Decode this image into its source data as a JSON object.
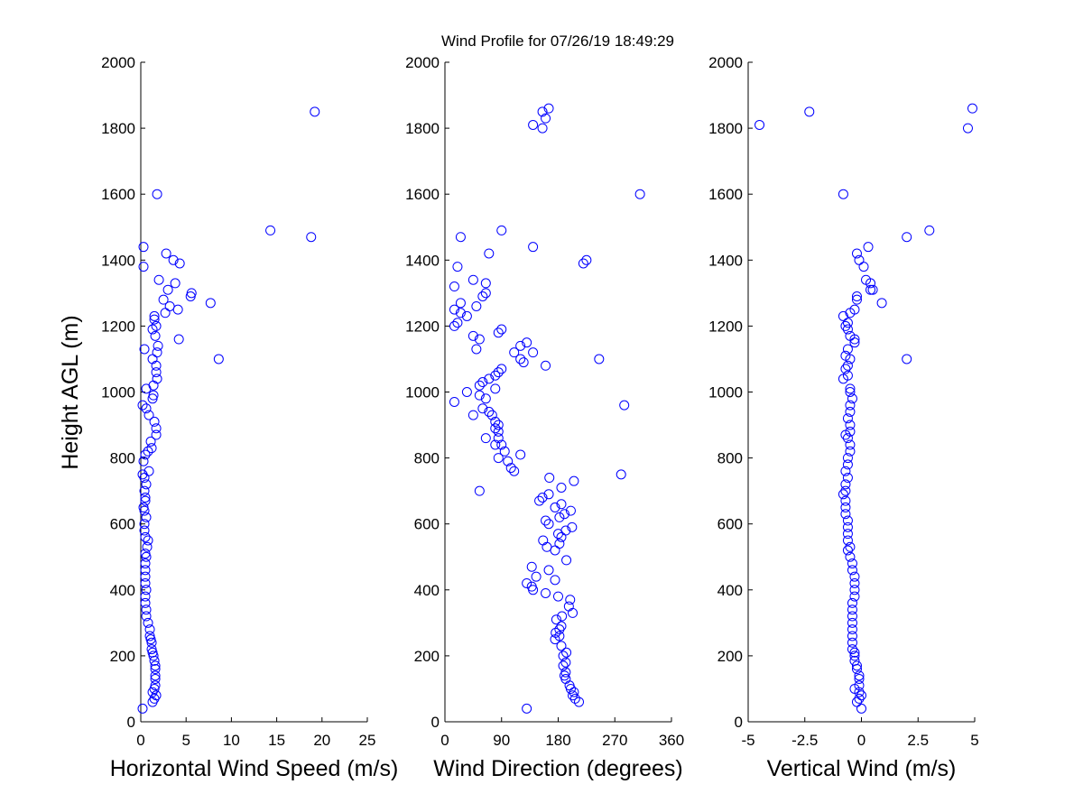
{
  "figure": {
    "title": "Wind Profile for  07/26/19 18:49:29",
    "ylabel": "Height AGL (m)"
  },
  "chart_data": [
    {
      "type": "scatter",
      "name": "speed",
      "xlabel": "Horizontal Wind Speed (m/s)",
      "xlim": [
        0,
        25
      ],
      "ylim": [
        0,
        2000
      ],
      "xticks": [
        "0",
        "5",
        "10",
        "15",
        "20",
        "25"
      ],
      "yticks": [
        "0",
        "200",
        "400",
        "600",
        "800",
        "1000",
        "1200",
        "1400",
        "1600",
        "1800",
        "2000"
      ],
      "marker_color": "#0000ff",
      "points": [
        [
          0.2,
          40
        ],
        [
          1.3,
          60
        ],
        [
          1.5,
          70
        ],
        [
          1.7,
          80
        ],
        [
          1.3,
          90
        ],
        [
          1.5,
          100
        ],
        [
          1.6,
          110
        ],
        [
          1.6,
          130
        ],
        [
          1.6,
          140
        ],
        [
          1.6,
          160
        ],
        [
          1.6,
          170
        ],
        [
          1.5,
          185
        ],
        [
          1.4,
          200
        ],
        [
          1.3,
          210
        ],
        [
          1.2,
          220
        ],
        [
          1.2,
          240
        ],
        [
          1.1,
          250
        ],
        [
          1.0,
          260
        ],
        [
          1.0,
          280
        ],
        [
          0.8,
          300
        ],
        [
          0.6,
          320
        ],
        [
          0.6,
          340
        ],
        [
          0.5,
          360
        ],
        [
          0.5,
          380
        ],
        [
          0.6,
          400
        ],
        [
          0.5,
          420
        ],
        [
          0.5,
          440
        ],
        [
          0.5,
          460
        ],
        [
          0.5,
          480
        ],
        [
          0.6,
          500
        ],
        [
          0.5,
          510
        ],
        [
          0.7,
          530
        ],
        [
          0.8,
          550
        ],
        [
          0.5,
          560
        ],
        [
          0.4,
          580
        ],
        [
          0.4,
          600
        ],
        [
          0.6,
          620
        ],
        [
          0.4,
          640
        ],
        [
          0.3,
          650
        ],
        [
          0.5,
          670
        ],
        [
          0.5,
          680
        ],
        [
          0.4,
          700
        ],
        [
          0.6,
          720
        ],
        [
          0.4,
          740
        ],
        [
          0.2,
          750
        ],
        [
          0.9,
          760
        ],
        [
          0.3,
          790
        ],
        [
          0.5,
          810
        ],
        [
          0.8,
          820
        ],
        [
          1.2,
          830
        ],
        [
          1.1,
          850
        ],
        [
          1.7,
          870
        ],
        [
          1.7,
          890
        ],
        [
          1.5,
          910
        ],
        [
          0.9,
          930
        ],
        [
          0.6,
          950
        ],
        [
          0.2,
          960
        ],
        [
          1.3,
          980
        ],
        [
          1.4,
          990
        ],
        [
          0.6,
          1010
        ],
        [
          1.4,
          1020
        ],
        [
          1.8,
          1040
        ],
        [
          1.7,
          1060
        ],
        [
          1.7,
          1080
        ],
        [
          1.3,
          1100
        ],
        [
          8.6,
          1100
        ],
        [
          1.8,
          1120
        ],
        [
          1.9,
          1140
        ],
        [
          0.4,
          1130
        ],
        [
          4.2,
          1160
        ],
        [
          1.6,
          1170
        ],
        [
          1.3,
          1190
        ],
        [
          1.7,
          1200
        ],
        [
          1.5,
          1220
        ],
        [
          1.5,
          1230
        ],
        [
          4.1,
          1250
        ],
        [
          2.7,
          1240
        ],
        [
          3.2,
          1260
        ],
        [
          2.5,
          1280
        ],
        [
          7.7,
          1270
        ],
        [
          5.5,
          1290
        ],
        [
          5.6,
          1300
        ],
        [
          3.0,
          1310
        ],
        [
          3.8,
          1330
        ],
        [
          2.0,
          1340
        ],
        [
          0.3,
          1380
        ],
        [
          4.3,
          1390
        ],
        [
          3.6,
          1400
        ],
        [
          2.8,
          1420
        ],
        [
          0.3,
          1440
        ],
        [
          18.8,
          1470
        ],
        [
          14.3,
          1490
        ],
        [
          1.8,
          1600
        ],
        [
          19.2,
          1850
        ]
      ]
    },
    {
      "type": "scatter",
      "name": "direction",
      "xlabel": "Wind Direction (degrees)",
      "xlim": [
        0,
        360
      ],
      "ylim": [
        0,
        2000
      ],
      "xticks": [
        "0",
        "90",
        "180",
        "270",
        "360"
      ],
      "yticks": [
        "0",
        "200",
        "400",
        "600",
        "800",
        "1000",
        "1200",
        "1400",
        "1600",
        "1800",
        "2000"
      ],
      "marker_color": "#0000ff",
      "points": [
        [
          130,
          40
        ],
        [
          213,
          60
        ],
        [
          207,
          70
        ],
        [
          203,
          80
        ],
        [
          205,
          90
        ],
        [
          200,
          100
        ],
        [
          198,
          110
        ],
        [
          192,
          130
        ],
        [
          190,
          140
        ],
        [
          192,
          150
        ],
        [
          188,
          170
        ],
        [
          192,
          180
        ],
        [
          188,
          200
        ],
        [
          193,
          210
        ],
        [
          185,
          230
        ],
        [
          175,
          250
        ],
        [
          182,
          260
        ],
        [
          176,
          270
        ],
        [
          182,
          280
        ],
        [
          185,
          290
        ],
        [
          177,
          310
        ],
        [
          186,
          320
        ],
        [
          203,
          330
        ],
        [
          197,
          350
        ],
        [
          199,
          370
        ],
        [
          180,
          380
        ],
        [
          160,
          390
        ],
        [
          140,
          400
        ],
        [
          130,
          420
        ],
        [
          138,
          410
        ],
        [
          175,
          430
        ],
        [
          145,
          440
        ],
        [
          165,
          460
        ],
        [
          138,
          470
        ],
        [
          193,
          490
        ],
        [
          175,
          520
        ],
        [
          162,
          530
        ],
        [
          182,
          540
        ],
        [
          156,
          550
        ],
        [
          185,
          560
        ],
        [
          180,
          570
        ],
        [
          192,
          580
        ],
        [
          202,
          590
        ],
        [
          165,
          600
        ],
        [
          160,
          610
        ],
        [
          182,
          620
        ],
        [
          190,
          630
        ],
        [
          200,
          640
        ],
        [
          175,
          650
        ],
        [
          185,
          660
        ],
        [
          150,
          670
        ],
        [
          155,
          680
        ],
        [
          165,
          690
        ],
        [
          185,
          710
        ],
        [
          166,
          740
        ],
        [
          205,
          730
        ],
        [
          280,
          750
        ],
        [
          55,
          700
        ],
        [
          110,
          760
        ],
        [
          105,
          770
        ],
        [
          100,
          790
        ],
        [
          120,
          810
        ],
        [
          95,
          820
        ],
        [
          85,
          800
        ],
        [
          90,
          840
        ],
        [
          80,
          840
        ],
        [
          85,
          860
        ],
        [
          65,
          860
        ],
        [
          85,
          880
        ],
        [
          80,
          890
        ],
        [
          85,
          900
        ],
        [
          80,
          910
        ],
        [
          75,
          930
        ],
        [
          45,
          930
        ],
        [
          60,
          950
        ],
        [
          70,
          940
        ],
        [
          55,
          990
        ],
        [
          35,
          1000
        ],
        [
          65,
          980
        ],
        [
          80,
          1010
        ],
        [
          55,
          1020
        ],
        [
          60,
          1030
        ],
        [
          70,
          1040
        ],
        [
          80,
          1050
        ],
        [
          85,
          1060
        ],
        [
          90,
          1070
        ],
        [
          50,
          1130
        ],
        [
          120,
          1100
        ],
        [
          125,
          1090
        ],
        [
          160,
          1080
        ],
        [
          245,
          1100
        ],
        [
          140,
          1120
        ],
        [
          110,
          1120
        ],
        [
          120,
          1140
        ],
        [
          130,
          1150
        ],
        [
          55,
          1160
        ],
        [
          45,
          1170
        ],
        [
          85,
          1180
        ],
        [
          90,
          1190
        ],
        [
          15,
          1200
        ],
        [
          20,
          1210
        ],
        [
          35,
          1230
        ],
        [
          25,
          1240
        ],
        [
          15,
          1250
        ],
        [
          50,
          1260
        ],
        [
          25,
          1270
        ],
        [
          60,
          1290
        ],
        [
          65,
          1300
        ],
        [
          15,
          1320
        ],
        [
          65,
          1330
        ],
        [
          45,
          1340
        ],
        [
          220,
          1390
        ],
        [
          225,
          1400
        ],
        [
          20,
          1380
        ],
        [
          70,
          1420
        ],
        [
          140,
          1440
        ],
        [
          25,
          1470
        ],
        [
          90,
          1490
        ],
        [
          310,
          1600
        ],
        [
          285,
          960
        ],
        [
          15,
          970
        ],
        [
          140,
          1810
        ],
        [
          155,
          1800
        ],
        [
          160,
          1830
        ],
        [
          155,
          1850
        ],
        [
          165,
          1860
        ]
      ]
    },
    {
      "type": "scatter",
      "name": "vertical",
      "xlabel": "Vertical Wind (m/s)",
      "xlim": [
        -5,
        5
      ],
      "ylim": [
        0,
        2000
      ],
      "xticks": [
        "-5",
        "-2.5",
        "0",
        "2.5",
        "5"
      ],
      "yticks": [
        "0",
        "200",
        "400",
        "600",
        "800",
        "1000",
        "1200",
        "1400",
        "1600",
        "1800",
        "2000"
      ],
      "marker_color": "#0000ff",
      "points": [
        [
          0.0,
          40
        ],
        [
          -0.2,
          60
        ],
        [
          -0.1,
          70
        ],
        [
          0.0,
          80
        ],
        [
          -0.1,
          90
        ],
        [
          -0.3,
          100
        ],
        [
          -0.1,
          110
        ],
        [
          -0.1,
          130
        ],
        [
          -0.1,
          140
        ],
        [
          -0.2,
          160
        ],
        [
          -0.2,
          170
        ],
        [
          -0.3,
          185
        ],
        [
          -0.3,
          200
        ],
        [
          -0.3,
          210
        ],
        [
          -0.4,
          220
        ],
        [
          -0.4,
          240
        ],
        [
          -0.4,
          260
        ],
        [
          -0.4,
          280
        ],
        [
          -0.4,
          300
        ],
        [
          -0.4,
          320
        ],
        [
          -0.4,
          340
        ],
        [
          -0.4,
          360
        ],
        [
          -0.3,
          380
        ],
        [
          -0.3,
          400
        ],
        [
          -0.3,
          420
        ],
        [
          -0.3,
          440
        ],
        [
          -0.4,
          460
        ],
        [
          -0.4,
          480
        ],
        [
          -0.5,
          500
        ],
        [
          -0.6,
          520
        ],
        [
          -0.5,
          530
        ],
        [
          -0.6,
          550
        ],
        [
          -0.6,
          570
        ],
        [
          -0.6,
          590
        ],
        [
          -0.6,
          610
        ],
        [
          -0.7,
          630
        ],
        [
          -0.7,
          650
        ],
        [
          -0.7,
          670
        ],
        [
          -0.8,
          690
        ],
        [
          -0.7,
          700
        ],
        [
          -0.7,
          720
        ],
        [
          -0.6,
          740
        ],
        [
          -0.7,
          760
        ],
        [
          -0.6,
          780
        ],
        [
          -0.6,
          800
        ],
        [
          -0.5,
          820
        ],
        [
          -0.5,
          840
        ],
        [
          -0.6,
          860
        ],
        [
          -0.7,
          870
        ],
        [
          -0.5,
          880
        ],
        [
          -0.5,
          900
        ],
        [
          -0.6,
          920
        ],
        [
          -0.5,
          940
        ],
        [
          -0.5,
          960
        ],
        [
          -0.4,
          980
        ],
        [
          -0.5,
          1000
        ],
        [
          -0.5,
          1010
        ],
        [
          -0.8,
          1040
        ],
        [
          -0.6,
          1050
        ],
        [
          -0.7,
          1070
        ],
        [
          -0.6,
          1080
        ],
        [
          -0.5,
          1100
        ],
        [
          -0.7,
          1110
        ],
        [
          -0.6,
          1130
        ],
        [
          -0.3,
          1150
        ],
        [
          -0.3,
          1160
        ],
        [
          -0.5,
          1170
        ],
        [
          -0.6,
          1190
        ],
        [
          -0.7,
          1200
        ],
        [
          -0.6,
          1210
        ],
        [
          -0.8,
          1230
        ],
        [
          -0.3,
          1250
        ],
        [
          -0.5,
          1240
        ],
        [
          -0.2,
          1280
        ],
        [
          -0.2,
          1290
        ],
        [
          0.4,
          1310
        ],
        [
          0.5,
          1310
        ],
        [
          0.4,
          1330
        ],
        [
          0.2,
          1340
        ],
        [
          0.9,
          1270
        ],
        [
          0.1,
          1380
        ],
        [
          -0.1,
          1400
        ],
        [
          -0.2,
          1420
        ],
        [
          0.3,
          1440
        ],
        [
          2.0,
          1470
        ],
        [
          3.0,
          1490
        ],
        [
          2.0,
          1100
        ],
        [
          -0.8,
          1600
        ],
        [
          -4.5,
          1810
        ],
        [
          -2.3,
          1850
        ],
        [
          4.7,
          1800
        ],
        [
          4.9,
          1860
        ]
      ]
    }
  ]
}
